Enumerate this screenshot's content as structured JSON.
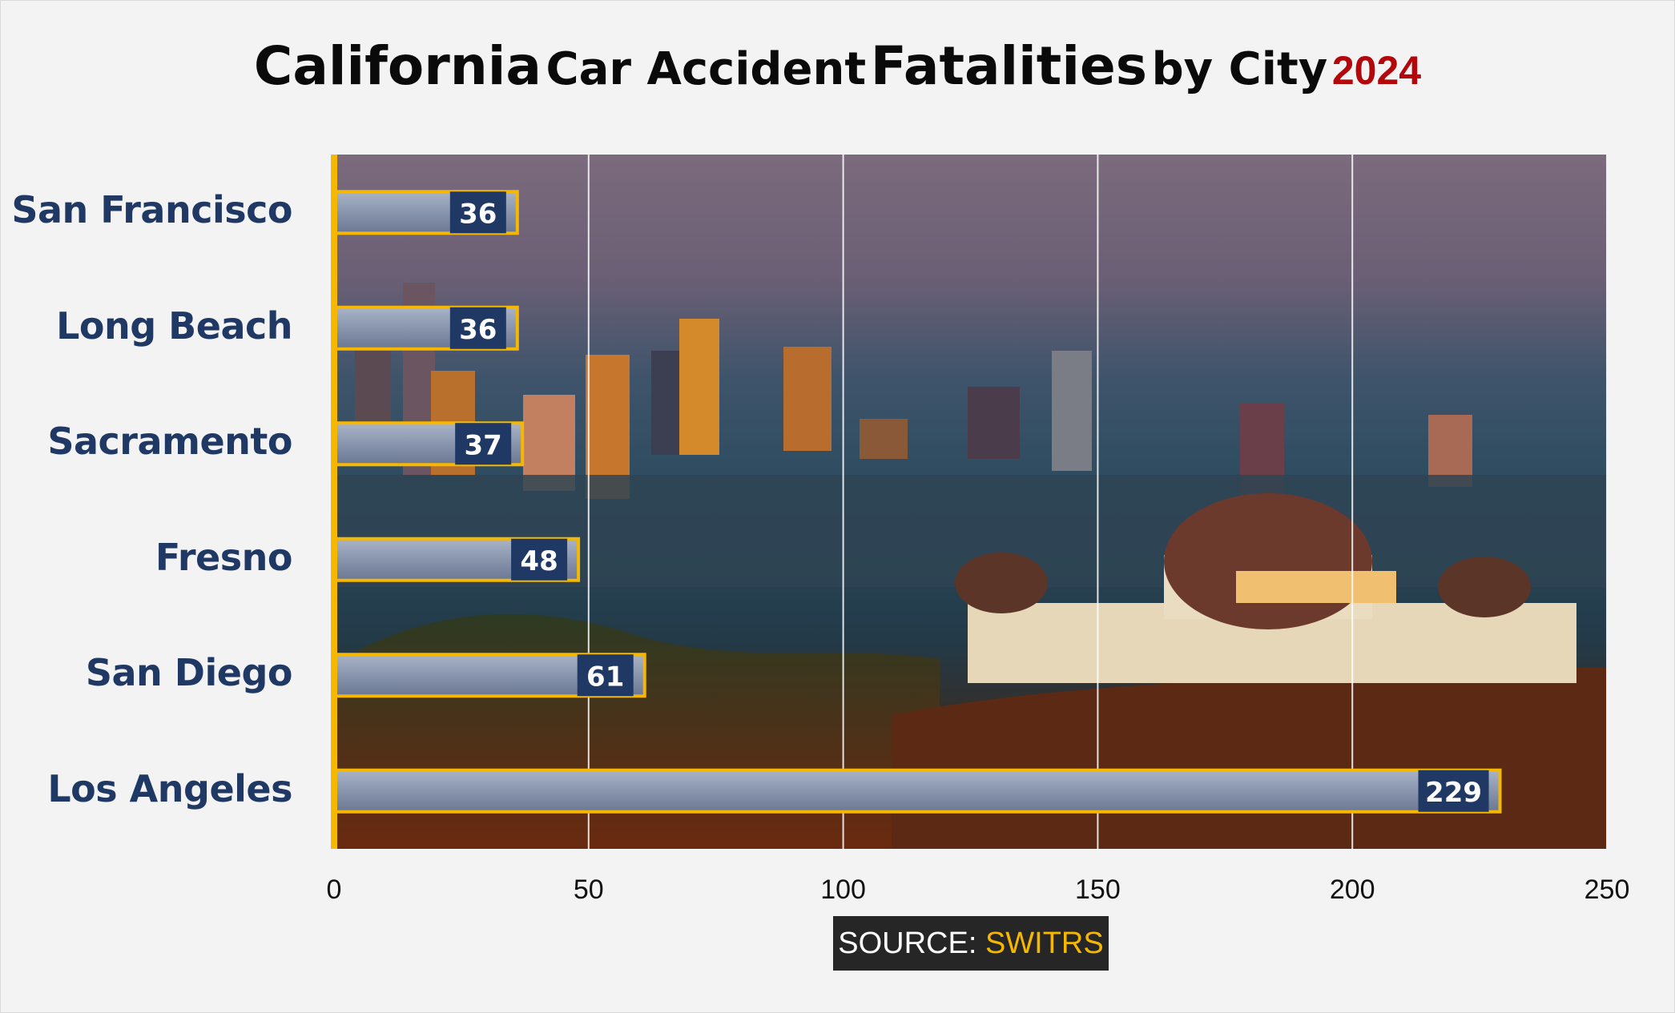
{
  "title": {
    "parts": [
      "California",
      "Car Accident",
      "Fatalities",
      "by City",
      "2024"
    ]
  },
  "source": {
    "label": "SOURCE:",
    "value": "SWITRS"
  },
  "colors": {
    "bar_outline": "#f5b700",
    "label_box": "#1f3864",
    "year": "#b3070c",
    "category_text": "#1f3864",
    "axis_line": "#f5b700"
  },
  "chart_data": {
    "type": "bar",
    "orientation": "horizontal",
    "title": "California Car Accident Fatalities by City 2024",
    "categories": [
      "San Francisco",
      "Long Beach",
      "Sacramento",
      "Fresno",
      "San Diego",
      "Los Angeles"
    ],
    "values": [
      36,
      36,
      37,
      48,
      61,
      229
    ],
    "xlim": [
      0,
      250
    ],
    "xticks": [
      0,
      50,
      100,
      150,
      200,
      250
    ],
    "grid": "vertical",
    "data_labels": true
  }
}
